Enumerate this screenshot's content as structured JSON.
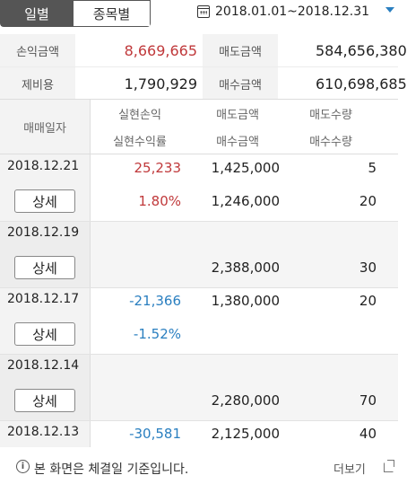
{
  "tabs": [
    {
      "label": "일별",
      "active": true
    },
    {
      "label": "종목별",
      "active": false
    }
  ],
  "date_range": "2018.01.01~2018.12.31",
  "summary": {
    "profit_label": "손익금액",
    "profit_value": "8,669,665",
    "sell_label": "매도금액",
    "sell_value": "584,656,380",
    "fee_label": "제비용",
    "fee_value": "1,790,929",
    "buy_label": "매수금액",
    "buy_value": "610,698,685"
  },
  "table_header": {
    "date": "매매일자",
    "realized_profit": "실현손익",
    "realized_rate": "실현수익률",
    "sell_amount": "매도금액",
    "buy_amount": "매수금액",
    "sell_qty": "매도수량",
    "buy_qty": "매수수량"
  },
  "detail_label": "상세",
  "rows": [
    {
      "date": "2018.12.21",
      "profit": "25,233",
      "rate": "1.80%",
      "sell": "1,425,000",
      "buy": "1,246,000",
      "sell_qty": "5",
      "buy_qty": "20",
      "sign": "pos"
    },
    {
      "date": "2018.12.19",
      "profit": "",
      "rate": "",
      "sell": "",
      "buy": "2,388,000",
      "sell_qty": "",
      "buy_qty": "30",
      "sign": "none"
    },
    {
      "date": "2018.12.17",
      "profit": "-21,366",
      "rate": "-1.52%",
      "sell": "1,380,000",
      "buy": "",
      "sell_qty": "20",
      "buy_qty": "",
      "sign": "neg"
    },
    {
      "date": "2018.12.14",
      "profit": "",
      "rate": "",
      "sell": "",
      "buy": "2,280,000",
      "sell_qty": "",
      "buy_qty": "70",
      "sign": "none"
    },
    {
      "date": "2018.12.13",
      "profit": "-30,581",
      "rate": "",
      "sell": "2,125,000",
      "buy": "",
      "sell_qty": "40",
      "buy_qty": "",
      "sign": "neg"
    }
  ],
  "footer": {
    "note": "본 화면은 체결일 기준입니다.",
    "more": "더보기"
  },
  "colors": {
    "positive": "#c0393b",
    "negative": "#2a7fc0",
    "accent": "#2a7fc0"
  },
  "icons": [
    "calendar-icon",
    "dropdown-caret-icon",
    "info-icon",
    "external-link-icon"
  ]
}
